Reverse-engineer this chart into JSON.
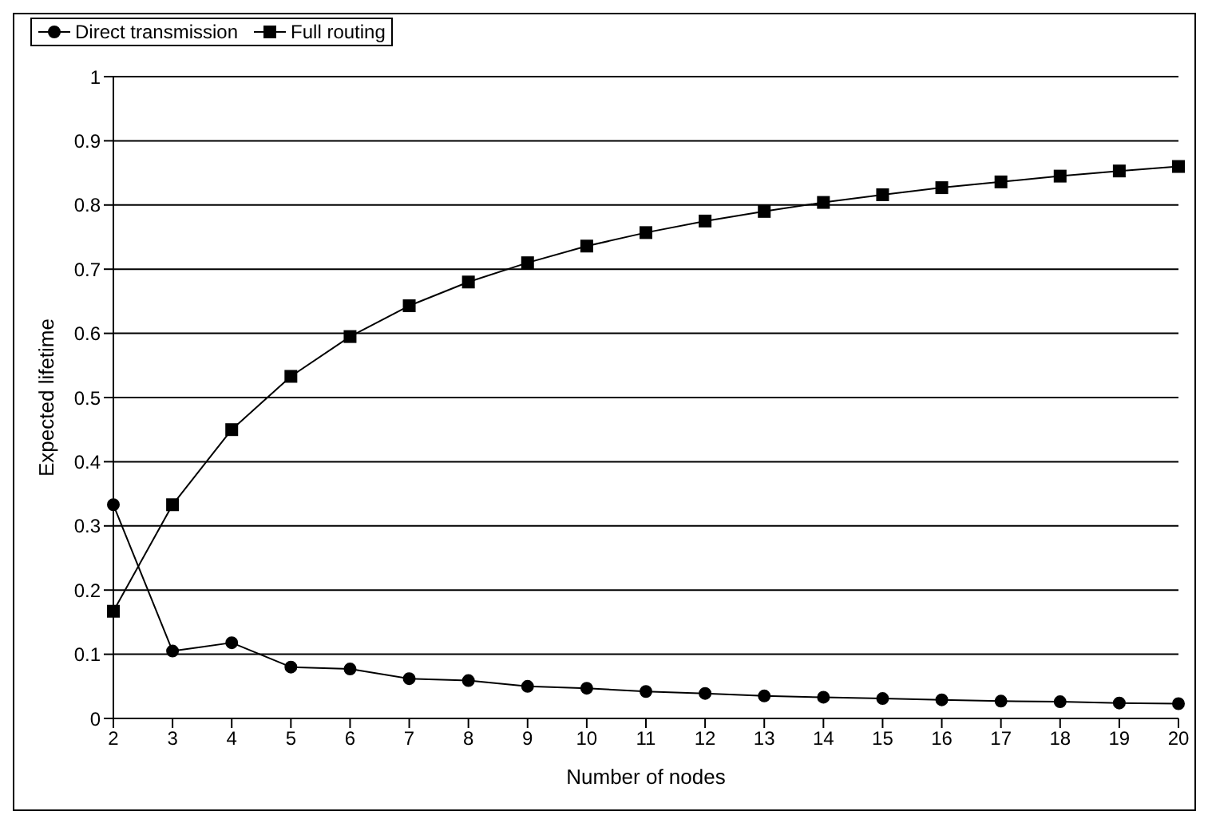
{
  "chart_data": {
    "type": "line",
    "xlabel": "Number of nodes",
    "ylabel": "Expected lifetime",
    "categories": [
      "2",
      "3",
      "4",
      "5",
      "6",
      "7",
      "8",
      "9",
      "10",
      "11",
      "12",
      "13",
      "14",
      "15",
      "16",
      "17",
      "18",
      "19",
      "20"
    ],
    "series": [
      {
        "name": "Direct transmission",
        "color": "#000000",
        "marker": "circle",
        "values": [
          0.333,
          0.105,
          0.118,
          0.08,
          0.077,
          0.062,
          0.059,
          0.05,
          0.047,
          0.042,
          0.039,
          0.035,
          0.033,
          0.031,
          0.029,
          0.027,
          0.026,
          0.024,
          0.023
        ]
      },
      {
        "name": "Full routing",
        "color": "#000000",
        "marker": "square",
        "values": [
          0.167,
          0.333,
          0.45,
          0.533,
          0.595,
          0.643,
          0.68,
          0.71,
          0.736,
          0.757,
          0.775,
          0.79,
          0.804,
          0.816,
          0.827,
          0.836,
          0.845,
          0.853,
          0.86
        ]
      }
    ],
    "ylim": [
      0,
      1
    ],
    "yticks": [
      0,
      0.1,
      0.2,
      0.3,
      0.4,
      0.5,
      0.6,
      0.7,
      0.8,
      0.9,
      1
    ],
    "grid": "y",
    "legend": "top"
  }
}
